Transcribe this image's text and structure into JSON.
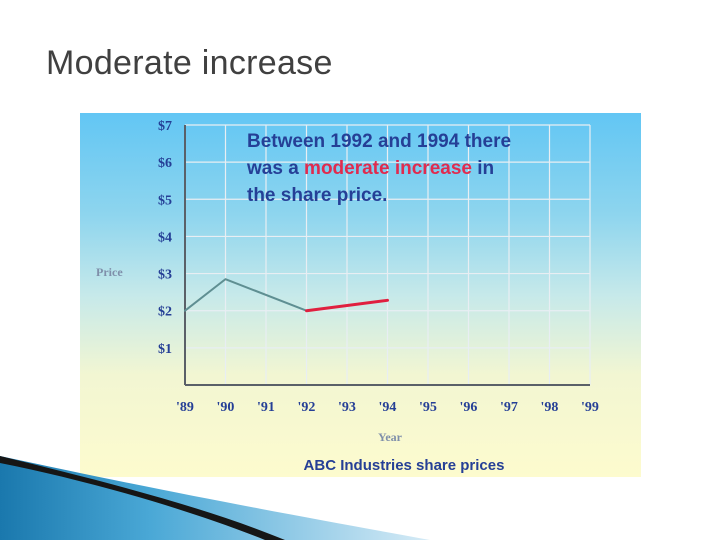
{
  "slide": {
    "title": "Moderate increase"
  },
  "chart_data": {
    "type": "line",
    "title": "ABC Industries share prices",
    "xlabel": "Year",
    "ylabel": "Price",
    "categories": [
      "'89",
      "'90",
      "'91",
      "'92",
      "'93",
      "'94",
      "'95",
      "'96",
      "'97",
      "'98",
      "'99"
    ],
    "y_ticks": [
      "$1",
      "$2",
      "$3",
      "$4",
      "$5",
      "$6",
      "$7"
    ],
    "ylim": [
      0,
      7
    ],
    "grid": true,
    "annotation": {
      "lines": [
        [
          {
            "text": "Between 1992 and 1994 there",
            "hl": false
          }
        ],
        [
          {
            "text": "was a ",
            "hl": false
          },
          {
            "text": "moderate increase",
            "hl": true
          },
          {
            "text": " in",
            "hl": false
          }
        ],
        [
          {
            "text": "the share price.",
            "hl": false
          }
        ]
      ]
    },
    "series": [
      {
        "color": "#5f8f92",
        "points": [
          [
            1989,
            2.0
          ],
          [
            1990,
            2.85
          ],
          [
            1992,
            2.0
          ]
        ]
      },
      {
        "color": "#e0203f",
        "points": [
          [
            1992,
            2.0
          ],
          [
            1994,
            2.28
          ]
        ]
      }
    ],
    "colors": {
      "accent_text": "#253f96",
      "highlight_text": "#e02b4e",
      "axis_label_text": "#7f8faa",
      "grid": "#e8eef3",
      "axis": "#5a6068"
    }
  }
}
